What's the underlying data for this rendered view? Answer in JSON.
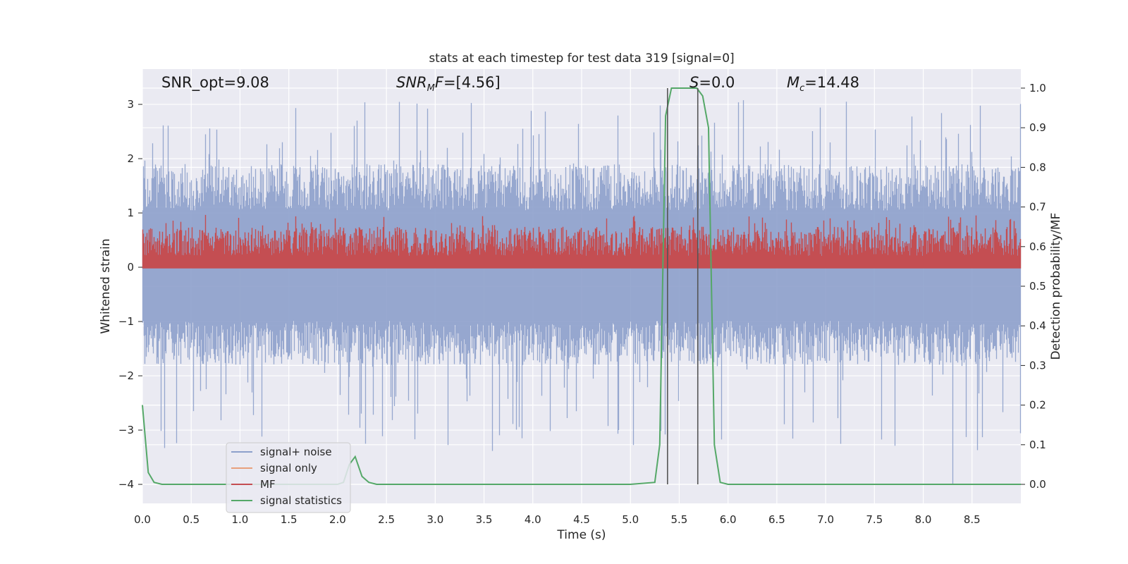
{
  "chart_data": {
    "type": "line",
    "title": "stats at each timestep for test data 319 [signal=0]",
    "xlabel": "Time (s)",
    "ylabel": "Whitened strain",
    "y2label": "Detection probability/MF",
    "xlim": [
      0.0,
      9.0
    ],
    "ylim": [
      -4.35,
      3.65
    ],
    "y2lim": [
      -0.048,
      1.048
    ],
    "xticks": [
      0.0,
      0.5,
      1.0,
      1.5,
      2.0,
      2.5,
      3.0,
      3.5,
      4.0,
      4.5,
      5.0,
      5.5,
      6.0,
      6.5,
      7.0,
      7.5,
      8.0,
      8.5
    ],
    "xtick_labels": [
      "0.0",
      "0.5",
      "1.0",
      "1.5",
      "2.0",
      "2.5",
      "3.0",
      "3.5",
      "4.0",
      "4.5",
      "5.0",
      "5.5",
      "6.0",
      "6.5",
      "7.0",
      "7.5",
      "8.0",
      "8.5"
    ],
    "yticks": [
      3,
      2,
      1,
      0,
      -1,
      -2,
      -3,
      -4
    ],
    "ytick_labels": [
      "3",
      "2",
      "1",
      "0",
      "−1",
      "−2",
      "−3",
      "−4"
    ],
    "y2ticks": [
      1.0,
      0.9,
      0.8,
      0.7,
      0.6,
      0.5,
      0.4,
      0.3,
      0.2,
      0.1,
      0.0
    ],
    "y2tick_labels": [
      "1.0",
      "0.9",
      "0.8",
      "0.7",
      "0.6",
      "0.5",
      "0.4",
      "0.3",
      "0.2",
      "0.1",
      "0.0"
    ],
    "grid": true,
    "legend_position": "lower-left",
    "annotations": [
      {
        "id": "snr-opt",
        "text": "SNR_opt=9.08"
      },
      {
        "id": "snr-mf",
        "text": "SNR_MF=[4.56]"
      },
      {
        "id": "s-value",
        "text": "S=0.0"
      },
      {
        "id": "mc-value",
        "text": "M_c=14.48"
      }
    ],
    "series": [
      {
        "name": "signal+ noise",
        "axis": "left",
        "color": "#8da0cb",
        "description_envelope": {
          "upper_typical": 1.9,
          "upper_peaks": 3.1,
          "lower_typical": -1.8,
          "lower_peaks": -3.4,
          "min_spike_x": 8.3,
          "min_spike_y": -4.0
        }
      },
      {
        "name": "signal only",
        "axis": "left",
        "color": "#e8a07c",
        "x": [
          0.0,
          9.0
        ],
        "y": [
          0.0,
          0.0
        ]
      },
      {
        "name": "MF",
        "axis": "right",
        "color": "#c44e52",
        "description_envelope": {
          "lower": 0.545,
          "upper_typical": 0.65,
          "upper_peaks": 0.68
        }
      },
      {
        "name": "signal statistics",
        "axis": "right",
        "color": "#55a868",
        "x": [
          0.0,
          0.06,
          0.12,
          0.2,
          0.5,
          1.0,
          1.5,
          2.0,
          2.06,
          2.12,
          2.18,
          2.25,
          2.32,
          2.4,
          3.0,
          4.0,
          5.0,
          5.25,
          5.3,
          5.36,
          5.42,
          5.48,
          5.55,
          5.62,
          5.68,
          5.74,
          5.8,
          5.86,
          5.92,
          6.0,
          7.0,
          8.0,
          9.0
        ],
        "y": [
          0.2,
          0.03,
          0.005,
          0.0,
          0.0,
          0.0,
          0.0,
          0.0,
          0.005,
          0.05,
          0.07,
          0.02,
          0.005,
          0.0,
          0.0,
          0.0,
          0.0,
          0.005,
          0.1,
          0.93,
          1.0,
          1.0,
          1.0,
          1.0,
          1.0,
          0.98,
          0.9,
          0.1,
          0.005,
          0.0,
          0.0,
          0.0,
          0.0
        ]
      }
    ],
    "vertical_lines": [
      5.38,
      5.69
    ]
  },
  "legend": {
    "items": [
      {
        "label": "signal+ noise",
        "color": "#8da0cb"
      },
      {
        "label": "signal only",
        "color": "#e8a07c"
      },
      {
        "label": "MF",
        "color": "#c44e52"
      },
      {
        "label": "signal statistics",
        "color": "#55a868"
      }
    ]
  }
}
